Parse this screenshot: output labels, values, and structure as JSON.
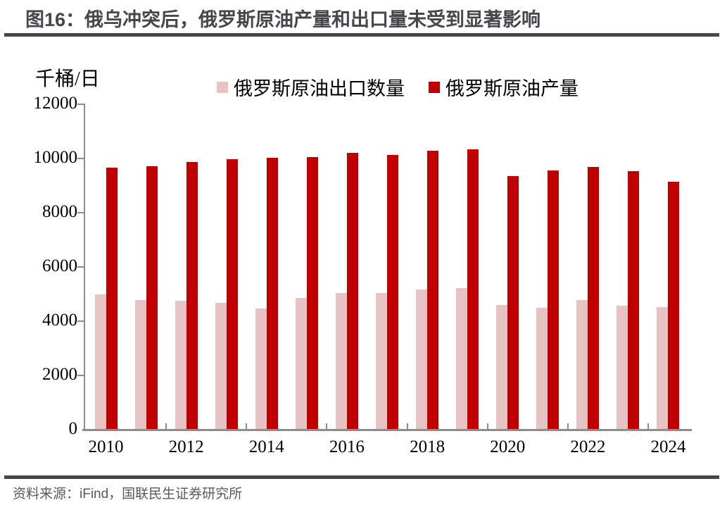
{
  "header": {
    "title": "图16：俄乌冲突后，俄罗斯原油产量和出口量未受到显著影响"
  },
  "chart_data": {
    "type": "bar",
    "title": "俄乌冲突后，俄罗斯原油产量和出口量未受到显著影响",
    "unit": "千桶/日",
    "ylabel": "千桶/日",
    "xlabel": "",
    "categories": [
      "2010",
      "2011",
      "2012",
      "2013",
      "2014",
      "2015",
      "2016",
      "2017",
      "2018",
      "2019",
      "2020",
      "2021",
      "2022",
      "2023",
      "2024"
    ],
    "series": [
      {
        "name": "俄罗斯原油出口数量",
        "color": "#e8c3c4",
        "values": [
          5000,
          4790,
          4760,
          4670,
          4480,
          4870,
          5050,
          5040,
          5180,
          5210,
          4600,
          4500,
          4770,
          4570,
          4510
        ]
      },
      {
        "name": "俄罗斯原油产量",
        "color": "#c00000",
        "values": [
          9650,
          9720,
          9880,
          9970,
          10020,
          10040,
          10220,
          10130,
          10290,
          10330,
          9350,
          9570,
          9700,
          9520,
          9130
        ]
      }
    ],
    "ylim": [
      0,
      12000
    ],
    "ytick_interval": 2000,
    "xtick_labels": [
      "2010",
      "2012",
      "2014",
      "2016",
      "2018",
      "2020",
      "2022",
      "2024"
    ],
    "legend_position": "top",
    "grid": false
  },
  "footer": {
    "source": "资料来源：iFind，国联民生证券研究所"
  }
}
